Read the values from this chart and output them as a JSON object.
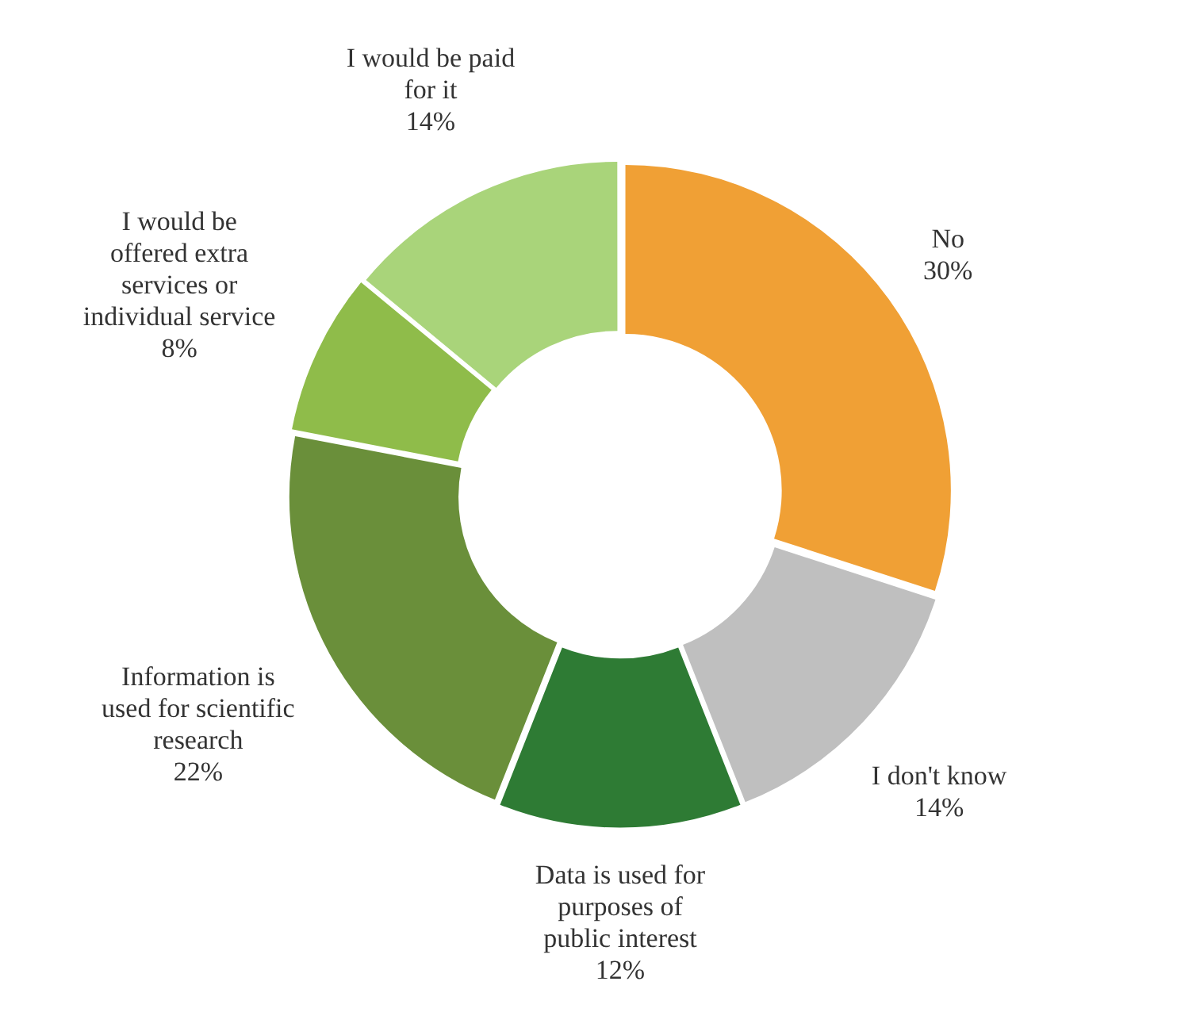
{
  "chart_data": {
    "type": "donut",
    "categories": [
      "No",
      "I don't know",
      "Data is used for purposes of public interest",
      "Information is used for scientific research",
      "I would be offered extra services or individual service",
      "I would be paid for it"
    ],
    "values": [
      30,
      14,
      12,
      22,
      8,
      14
    ],
    "value_labels": [
      "30%",
      "14%",
      "12%",
      "22%",
      "8%",
      "14%"
    ],
    "colors": [
      "#f0a035",
      "#bfbfbf",
      "#2e7b34",
      "#6a8f3a",
      "#8fbc4a",
      "#a9d47a"
    ],
    "legend": false
  }
}
